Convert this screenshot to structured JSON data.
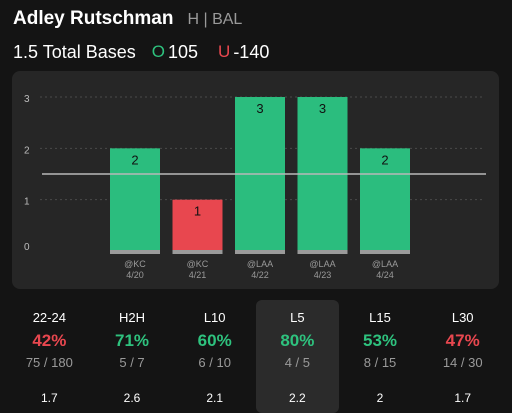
{
  "header": {
    "player_name": "Adley Rutschman",
    "team_info": "H | BAL",
    "prop_label": "1.5 Total Bases",
    "over": {
      "letter": "O",
      "odds": "105"
    },
    "under": {
      "letter": "U",
      "odds": "-140"
    }
  },
  "colors": {
    "over_bar": "#2bbd7e",
    "under_bar": "#e8474f",
    "bar_base": "#9a9a9a",
    "line": "#b8b8b8",
    "panel": "#262626"
  },
  "chart_data": {
    "type": "bar",
    "categories": [
      "@KC 4/20",
      "@KC 4/21",
      "@LAA 4/22",
      "@LAA 4/23",
      "@LAA 4/24"
    ],
    "opponents": [
      "@KC",
      "@KC",
      "@LAA",
      "@LAA",
      "@LAA"
    ],
    "dates": [
      "4/20",
      "4/21",
      "4/22",
      "4/23",
      "4/24"
    ],
    "values": [
      2,
      1,
      3,
      3,
      2
    ],
    "line": 1.5,
    "ylim": [
      0,
      3
    ],
    "yticks": [
      "0",
      "1",
      "2",
      "3"
    ],
    "grid": true
  },
  "stats": [
    {
      "label": "22-24",
      "pct": "42%",
      "frac": "75 / 180",
      "avg": "1.7",
      "status": "under",
      "active": false
    },
    {
      "label": "H2H",
      "pct": "71%",
      "frac": "5 / 7",
      "avg": "2.6",
      "status": "over",
      "active": false
    },
    {
      "label": "L10",
      "pct": "60%",
      "frac": "6 / 10",
      "avg": "2.1",
      "status": "over",
      "active": false
    },
    {
      "label": "L5",
      "pct": "80%",
      "frac": "4 / 5",
      "avg": "2.2",
      "status": "over",
      "active": true
    },
    {
      "label": "L15",
      "pct": "53%",
      "frac": "8 / 15",
      "avg": "2",
      "status": "over",
      "active": false
    },
    {
      "label": "L30",
      "pct": "47%",
      "frac": "14 / 30",
      "avg": "1.7",
      "status": "under",
      "active": false
    }
  ]
}
